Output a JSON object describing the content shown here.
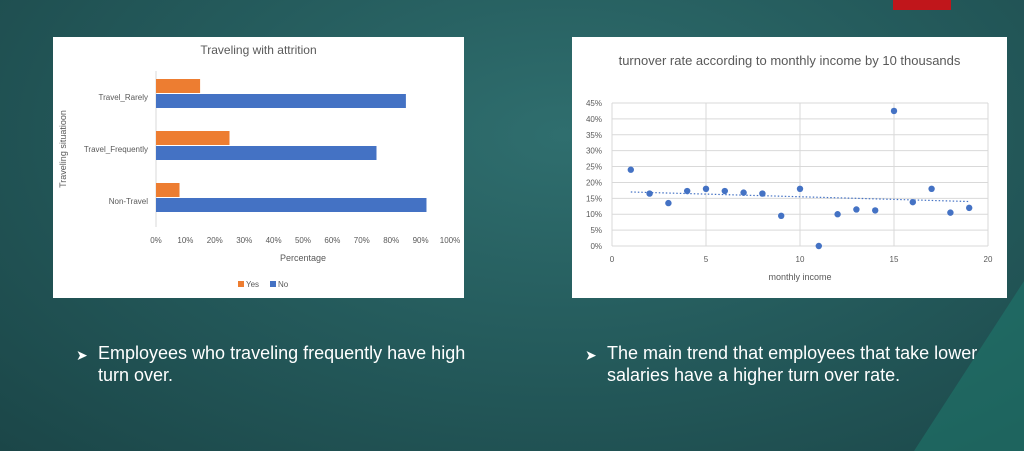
{
  "slide": {
    "accent_color": "#c0161b",
    "bullets": [
      {
        "icon": "arrow-bullet-icon",
        "text": "Employees who traveling frequently have high turn over."
      },
      {
        "icon": "arrow-bullet-icon",
        "text": "The main trend that employees that take lower salaries have a higher turn over rate."
      }
    ]
  },
  "chart_data": [
    {
      "type": "bar",
      "orientation": "horizontal",
      "title": "Traveling with attrition",
      "xlabel": "Percentage",
      "ylabel": "Traveling situatioon",
      "categories": [
        "Travel_Rarely",
        "Travel_Frequently",
        "Non-Travel"
      ],
      "series": [
        {
          "name": "Yes",
          "color": "#ed7d31",
          "values": [
            15,
            25,
            8
          ]
        },
        {
          "name": "No",
          "color": "#4472c4",
          "values": [
            85,
            75,
            92
          ]
        }
      ],
      "xlim": [
        0,
        100
      ],
      "xticks": [
        "0%",
        "10%",
        "20%",
        "30%",
        "40%",
        "50%",
        "60%",
        "70%",
        "80%",
        "90%",
        "100%"
      ],
      "grid": false,
      "legend": "bottom"
    },
    {
      "type": "scatter",
      "title": "turnover rate according to monthly income by 10 thousands",
      "xlabel": "monthly income",
      "ylabel": "",
      "x": [
        1,
        2,
        3,
        4,
        5,
        6,
        7,
        8,
        9,
        10,
        11,
        12,
        13,
        14,
        15,
        16,
        17,
        18,
        19
      ],
      "y": [
        24,
        16.5,
        13.5,
        17.3,
        18,
        17.3,
        16.8,
        16.5,
        9.5,
        18,
        0,
        10,
        11.5,
        11.2,
        42.5,
        13.8,
        18,
        10.5,
        12
      ],
      "trendline": {
        "type": "linear",
        "start": [
          1,
          17
        ],
        "end": [
          19,
          14
        ]
      },
      "series_color": "#4472c4",
      "xlim": [
        0,
        20
      ],
      "xticks": [
        "0",
        "5",
        "10",
        "15",
        "20"
      ],
      "ylim": [
        0,
        45
      ],
      "yticks": [
        "0%",
        "5%",
        "10%",
        "15%",
        "20%",
        "25%",
        "30%",
        "35%",
        "40%",
        "45%"
      ],
      "grid": true,
      "legend": "none"
    }
  ]
}
